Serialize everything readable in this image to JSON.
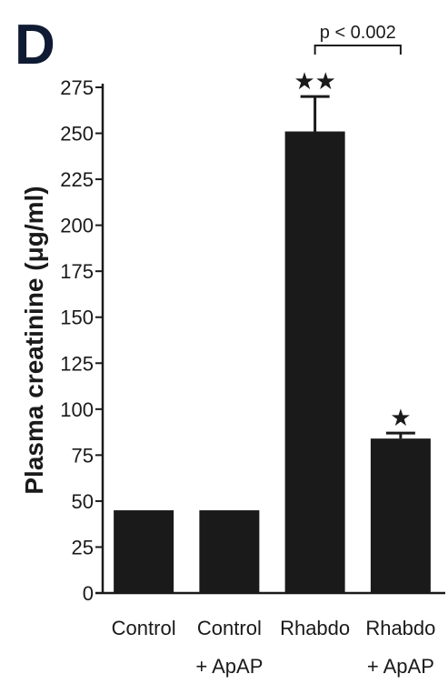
{
  "panel_label": "D",
  "chart_data": {
    "type": "bar",
    "title": "",
    "xlabel": "",
    "ylabel": "Plasma creatinine (μg/ml)",
    "ylim": [
      0,
      275
    ],
    "yticks": [
      0,
      25,
      50,
      75,
      100,
      125,
      150,
      175,
      200,
      225,
      250,
      275
    ],
    "categories": [
      [
        "Control"
      ],
      [
        "Control",
        "+ ApAP"
      ],
      [
        "Rhabdo"
      ],
      [
        "Rhabdo",
        "+ ApAP"
      ]
    ],
    "values": [
      45,
      45,
      251,
      84
    ],
    "errors": [
      0,
      0,
      19,
      3
    ],
    "significance": [
      "",
      "",
      "★★",
      "★"
    ],
    "comparison": {
      "from": 2,
      "to": 3,
      "label": "p < 0.002"
    },
    "bar_color": "#1a1a1a",
    "grid": false,
    "legend": "none"
  }
}
